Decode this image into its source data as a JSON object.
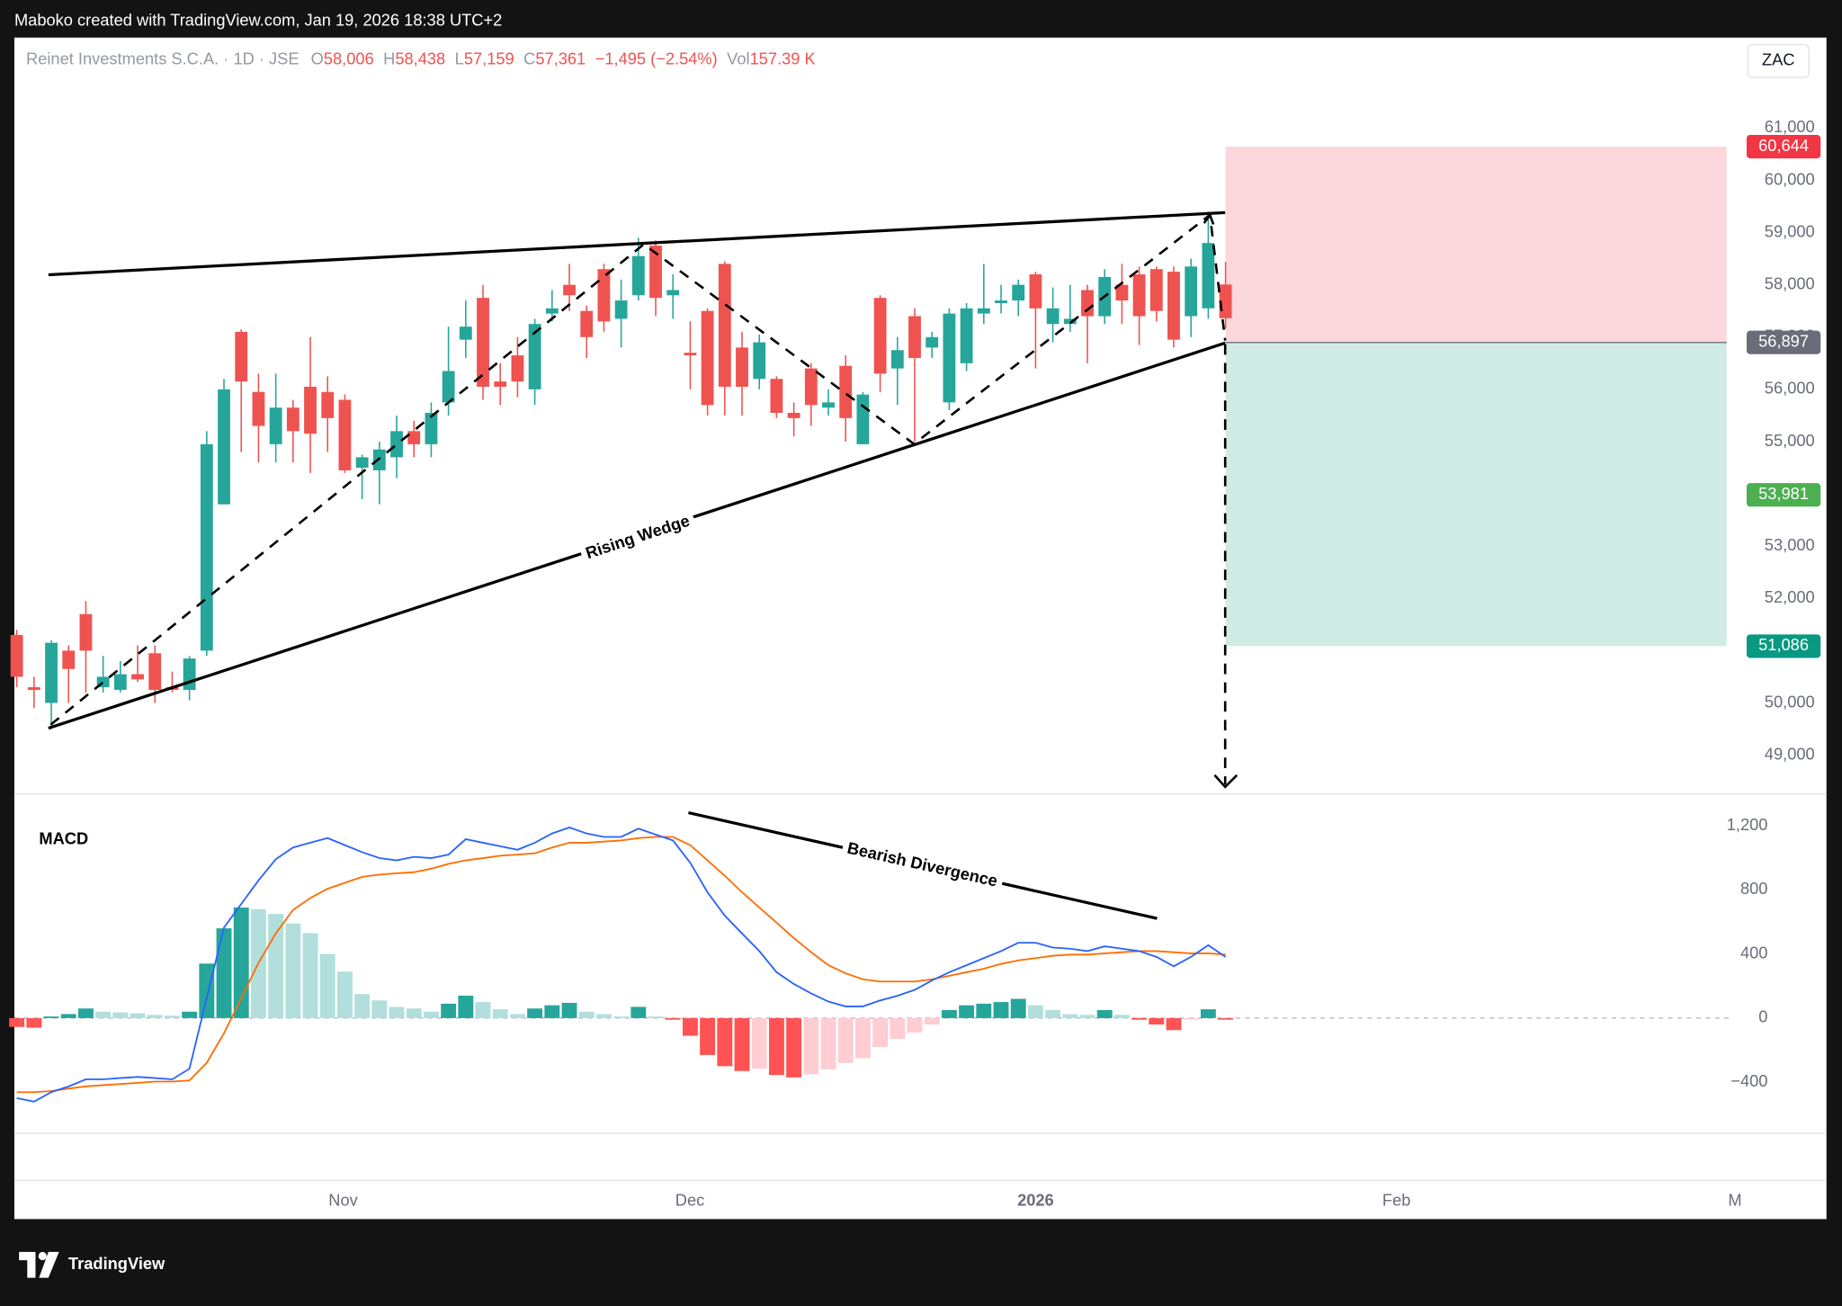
{
  "header": {
    "attribution": "Maboko created with TradingView.com, Jan 19, 2026 18:38 UTC+2",
    "currency": "ZAC"
  },
  "footer": {
    "logo": "TradingView"
  },
  "chart_data": [
    {
      "type": "candlestick",
      "title": "Reinet Investments S.C.A. · 1D · JSE",
      "legend": [
        {
          "label": "O",
          "value": "58,006"
        },
        {
          "label": "H",
          "value": "58,438"
        },
        {
          "label": "L",
          "value": "57,159"
        },
        {
          "label": "C",
          "value": "57,361"
        }
      ],
      "change": "−1,495 (−2.54%)",
      "volume": {
        "label": "Vol",
        "value": "157.39 K"
      },
      "annotation": "Rising Wedge",
      "up_color": "#26a69a",
      "down_color": "#ef5350",
      "x": [
        0,
        1,
        2,
        3,
        4,
        5,
        6,
        7,
        8,
        9,
        10,
        11,
        12,
        13,
        14,
        15,
        16,
        17,
        18,
        19,
        20,
        21,
        22,
        23,
        24,
        25,
        26,
        27,
        28,
        29,
        30,
        31,
        32,
        33,
        34,
        35,
        36,
        37,
        38,
        39,
        40,
        41,
        42,
        43,
        44,
        45,
        46,
        47,
        48,
        49,
        50,
        51,
        52,
        53,
        54,
        55,
        56,
        57,
        58,
        59,
        60,
        61,
        62,
        63,
        64,
        65,
        66,
        67,
        68,
        69,
        70
      ],
      "open": [
        51300,
        50300,
        50000,
        51000,
        51700,
        50300,
        50250,
        50550,
        50950,
        50300,
        50250,
        51000,
        53800,
        57100,
        55950,
        54950,
        55650,
        56050,
        55950,
        55800,
        54500,
        54450,
        54700,
        55200,
        54950,
        55750,
        56950,
        57750,
        56150,
        56650,
        56000,
        57450,
        58000,
        57500,
        58300,
        57350,
        57800,
        58750,
        57800,
        56700,
        57500,
        58400,
        56800,
        56200,
        56200,
        55550,
        56400,
        55650,
        56450,
        54950,
        57750,
        56400,
        57400,
        56800,
        55750,
        56500,
        57450,
        57650,
        57700,
        58200,
        57250,
        57250,
        57900,
        57400,
        58000,
        58200,
        58300,
        58250,
        57400,
        57550,
        58006
      ],
      "high": [
        51400,
        50500,
        51200,
        51100,
        51950,
        50900,
        50800,
        51100,
        51100,
        50600,
        50900,
        55200,
        56200,
        57150,
        56300,
        56300,
        55800,
        57000,
        56250,
        55900,
        54750,
        55000,
        55500,
        55400,
        55750,
        57200,
        57700,
        58000,
        56500,
        57000,
        57350,
        57900,
        58400,
        57600,
        58400,
        58100,
        58900,
        58850,
        58200,
        57300,
        57550,
        58450,
        57100,
        57050,
        56250,
        55750,
        56500,
        56000,
        56650,
        55950,
        57800,
        57000,
        57550,
        57100,
        57550,
        57650,
        58400,
        58000,
        58100,
        58250,
        57950,
        58000,
        58000,
        58300,
        58400,
        58350,
        58350,
        58350,
        58500,
        59400,
        58438
      ],
      "low": [
        50300,
        49900,
        49500,
        50000,
        50200,
        50200,
        50200,
        50400,
        50000,
        50200,
        50050,
        50900,
        53800,
        54800,
        54600,
        54600,
        54600,
        54400,
        54800,
        54400,
        53900,
        53800,
        54300,
        54700,
        54700,
        55500,
        56600,
        55800,
        55700,
        55850,
        55700,
        57300,
        57500,
        56600,
        57100,
        56800,
        57700,
        57400,
        57350,
        56000,
        55500,
        55500,
        55500,
        56000,
        55450,
        55100,
        55300,
        55500,
        55000,
        54950,
        55950,
        55700,
        55000,
        56600,
        55600,
        56350,
        57250,
        57450,
        57400,
        56400,
        56900,
        57100,
        56500,
        57250,
        57250,
        56850,
        57300,
        56800,
        57000,
        57350,
        57159
      ],
      "close": [
        50500,
        50250,
        51150,
        50650,
        51000,
        50500,
        50550,
        50450,
        50250,
        50250,
        50850,
        54950,
        56000,
        56150,
        55300,
        55650,
        55200,
        55150,
        55450,
        54450,
        54700,
        54850,
        55200,
        54950,
        55550,
        56350,
        57200,
        56050,
        56050,
        56150,
        57250,
        57550,
        57800,
        57000,
        57300,
        57700,
        58550,
        57750,
        57900,
        56650,
        55700,
        56050,
        56050,
        56900,
        55550,
        55450,
        55700,
        55750,
        55450,
        55900,
        56300,
        56750,
        56600,
        57000,
        57450,
        57550,
        57550,
        57700,
        58000,
        57550,
        57550,
        57350,
        57400,
        58150,
        57700,
        57400,
        57500,
        56950,
        58350,
        58800,
        57361
      ],
      "xlim": [
        -0.14,
        104.8
      ],
      "xticks": [
        {
          "value": 18.9,
          "label": "Nov"
        },
        {
          "value": 38.98,
          "label": "Dec"
        },
        {
          "value": 59.0,
          "label": "2026"
        },
        {
          "value": 79.9,
          "label": "Feb"
        },
        {
          "value": 99.5,
          "label": "M"
        }
      ],
      "ylim": [
        48281,
        62663
      ],
      "yticks": [
        {
          "value": 49000,
          "label": "49,000"
        },
        {
          "value": 50000,
          "label": "50,000"
        },
        {
          "value": 51000,
          "label": "51,000"
        },
        {
          "value": 52000,
          "label": "52,000"
        },
        {
          "value": 53000,
          "label": "53,000"
        },
        {
          "value": 54000,
          "label": "54,000"
        },
        {
          "value": 55000,
          "label": "55,000"
        },
        {
          "value": 56000,
          "label": "56,000"
        },
        {
          "value": 57000,
          "label": "57,000"
        },
        {
          "value": 58000,
          "label": "58,000"
        },
        {
          "value": 59000,
          "label": "59,000"
        },
        {
          "value": 60000,
          "label": "60,000"
        },
        {
          "value": 61000,
          "label": "61,000"
        }
      ],
      "price_labels": [
        {
          "value": 60644,
          "label": "60,644",
          "color": "#f23645"
        },
        {
          "value": 56897,
          "label": "56,897",
          "color": "#6a6d78"
        },
        {
          "value": 53981,
          "label": "53,981",
          "color": "#4caf50"
        },
        {
          "value": 51086,
          "label": "51,086",
          "color": "#089981"
        }
      ],
      "grid": false
    },
    {
      "type": "macd",
      "title": "MACD",
      "annotation": "Bearish Divergence",
      "histogram": {
        "colors": [
          "#26a69a",
          "#b2dfdb",
          "#ff5252",
          "#ffcdd2"
        ],
        "values": [
          -55,
          -60,
          10,
          25,
          60,
          40,
          35,
          30,
          20,
          15,
          40,
          340,
          560,
          690,
          680,
          650,
          590,
          530,
          400,
          290,
          150,
          110,
          70,
          60,
          40,
          90,
          140,
          100,
          55,
          25,
          60,
          80,
          95,
          40,
          25,
          10,
          70,
          10,
          -10,
          -110,
          -230,
          -300,
          -330,
          -315,
          -355,
          -370,
          -350,
          -320,
          -280,
          -250,
          -180,
          -130,
          -90,
          -40,
          50,
          80,
          90,
          100,
          120,
          80,
          50,
          25,
          20,
          50,
          20,
          -10,
          -40,
          -75,
          -10,
          55,
          -10
        ]
      },
      "macd_line": {
        "color": "#2962ff",
        "values": [
          -499,
          -521,
          -462,
          -426,
          -382,
          -382,
          -374,
          -367,
          -374,
          -382,
          -316,
          125,
          565,
          712,
          859,
          991,
          1064,
          1094,
          1123,
          1079,
          1035,
          998,
          984,
          1006,
          998,
          1020,
          1116,
          1094,
          1072,
          1050,
          1094,
          1152,
          1189,
          1152,
          1130,
          1130,
          1182,
          1145,
          1108,
          969,
          785,
          639,
          528,
          418,
          286,
          213,
          154,
          103,
          73,
          73,
          110,
          139,
          176,
          235,
          286,
          330,
          374,
          418,
          470,
          470,
          440,
          433,
          418,
          448,
          433,
          418,
          382,
          323,
          382,
          455,
          382
        ]
      },
      "signal_line": {
        "color": "#ff6d00",
        "values": [
          -462,
          -462,
          -455,
          -440,
          -426,
          -418,
          -411,
          -404,
          -396,
          -396,
          -389,
          -279,
          -95,
          125,
          345,
          528,
          675,
          749,
          807,
          844,
          881,
          895,
          903,
          910,
          932,
          962,
          984,
          998,
          1013,
          1020,
          1028,
          1064,
          1094,
          1094,
          1101,
          1108,
          1123,
          1130,
          1130,
          1079,
          984,
          888,
          785,
          690,
          595,
          499,
          411,
          330,
          279,
          242,
          228,
          228,
          228,
          242,
          264,
          286,
          308,
          338,
          360,
          374,
          389,
          396,
          396,
          404,
          411,
          418,
          418,
          411,
          404,
          404,
          396
        ]
      },
      "ylim": [
        -719,
        1391
      ],
      "yticks": [
        {
          "value": 1200,
          "label": "1,200"
        },
        800,
        400,
        0,
        {
          "value": -400,
          "label": "−400"
        }
      ]
    }
  ]
}
